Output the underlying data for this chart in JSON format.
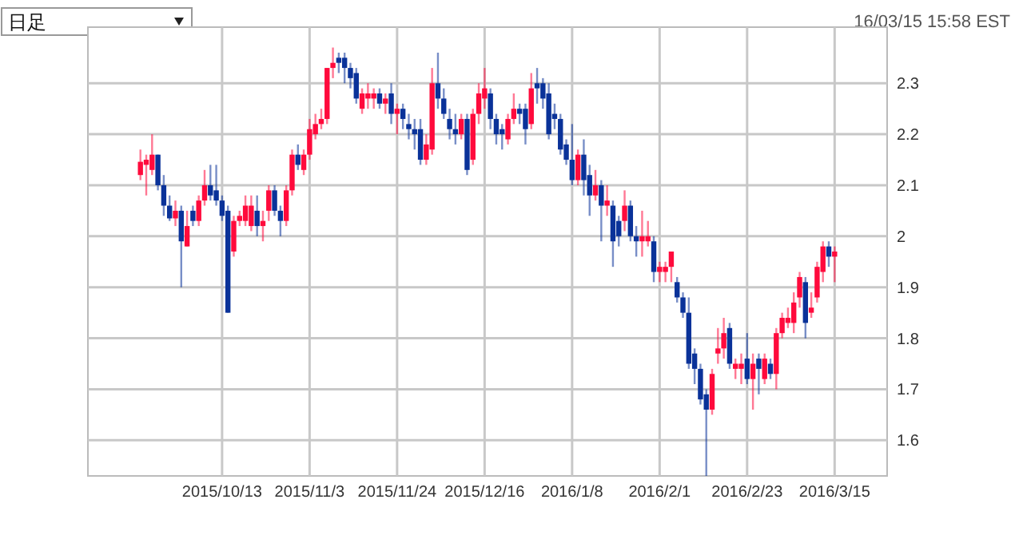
{
  "chart_data": {
    "type": "candlestick",
    "categories": [
      null,
      null,
      null,
      null,
      null,
      null,
      null,
      null,
      null,
      null,
      null,
      null,
      null,
      null,
      "2015/10/13",
      null,
      null,
      null,
      null,
      null,
      null,
      null,
      null,
      null,
      null,
      null,
      null,
      null,
      null,
      "2015/11/3",
      null,
      null,
      null,
      null,
      null,
      null,
      null,
      null,
      null,
      null,
      null,
      null,
      null,
      null,
      "2015/11/24",
      null,
      null,
      null,
      null,
      null,
      null,
      null,
      null,
      null,
      null,
      null,
      null,
      null,
      null,
      "2015/12/16",
      null,
      null,
      null,
      null,
      null,
      null,
      null,
      null,
      null,
      null,
      null,
      null,
      null,
      null,
      "2016/1/8",
      null,
      null,
      null,
      null,
      null,
      null,
      null,
      null,
      null,
      null,
      null,
      null,
      null,
      null,
      "2016/2/1",
      null,
      null,
      null,
      null,
      null,
      null,
      null,
      null,
      null,
      null,
      null,
      null,
      null,
      null,
      "2016/2/23",
      null,
      null,
      null,
      null,
      null,
      null,
      null,
      null,
      null,
      null,
      null,
      null,
      null,
      null,
      "2016/3/15"
    ],
    "ohlc": [
      [
        2.12,
        2.17,
        2.11,
        2.146
      ],
      [
        2.14,
        2.16,
        2.08,
        2.15
      ],
      [
        2.13,
        2.2,
        2.12,
        2.16
      ],
      [
        2.16,
        2.16,
        2.09,
        2.1
      ],
      [
        2.1,
        2.12,
        2.04,
        2.06
      ],
      [
        2.06,
        2.08,
        2.03,
        2.035
      ],
      [
        2.035,
        2.07,
        2.02,
        2.05
      ],
      [
        2.05,
        2.06,
        1.9,
        1.99
      ],
      [
        1.98,
        2.05,
        1.98,
        2.02
      ],
      [
        2.05,
        2.06,
        2.02,
        2.03
      ],
      [
        2.03,
        2.08,
        2.02,
        2.07
      ],
      [
        2.07,
        2.13,
        2.06,
        2.1
      ],
      [
        2.1,
        2.14,
        2.07,
        2.08
      ],
      [
        2.09,
        2.14,
        2.06,
        2.07
      ],
      [
        2.07,
        2.08,
        2.03,
        2.04
      ],
      [
        2.05,
        2.06,
        1.85,
        1.85
      ],
      [
        1.97,
        2.04,
        1.96,
        2.03
      ],
      [
        2.03,
        2.05,
        2.02,
        2.04
      ],
      [
        2.03,
        2.08,
        2.02,
        2.06
      ],
      [
        2.02,
        2.08,
        2.01,
        2.06
      ],
      [
        2.05,
        2.08,
        2,
        2.02
      ],
      [
        2.02,
        2.05,
        1.99,
        2.03
      ],
      [
        2.05,
        2.1,
        2.03,
        2.09
      ],
      [
        2.09,
        2.1,
        2.04,
        2.05
      ],
      [
        2.05,
        2.06,
        2,
        2.03
      ],
      [
        2.03,
        2.1,
        2.02,
        2.09
      ],
      [
        2.09,
        2.17,
        2.08,
        2.16
      ],
      [
        2.16,
        2.18,
        2.13,
        2.14
      ],
      [
        2.13,
        2.17,
        2.12,
        2.16
      ],
      [
        2.16,
        2.23,
        2.15,
        2.21
      ],
      [
        2.2,
        2.24,
        2.19,
        2.22
      ],
      [
        2.22,
        2.25,
        2.21,
        2.23
      ],
      [
        2.23,
        2.33,
        2.22,
        2.33
      ],
      [
        2.33,
        2.37,
        2.31,
        2.34
      ],
      [
        2.35,
        2.36,
        2.32,
        2.34
      ],
      [
        2.35,
        2.36,
        2.3,
        2.33
      ],
      [
        2.33,
        2.34,
        2.29,
        2.31
      ],
      [
        2.32,
        2.33,
        2.26,
        2.27
      ],
      [
        2.25,
        2.29,
        2.24,
        2.28
      ],
      [
        2.27,
        2.3,
        2.25,
        2.28
      ],
      [
        2.27,
        2.29,
        2.25,
        2.28
      ],
      [
        2.28,
        2.29,
        2.25,
        2.26
      ],
      [
        2.26,
        2.28,
        2.24,
        2.27
      ],
      [
        2.28,
        2.3,
        2.22,
        2.24
      ],
      [
        2.24,
        2.26,
        2.2,
        2.25
      ],
      [
        2.25,
        2.26,
        2.21,
        2.23
      ],
      [
        2.22,
        2.24,
        2.19,
        2.21
      ],
      [
        2.21,
        2.23,
        2.17,
        2.2
      ],
      [
        2.21,
        2.23,
        2.14,
        2.15
      ],
      [
        2.15,
        2.2,
        2.14,
        2.18
      ],
      [
        2.17,
        2.33,
        2.16,
        2.3
      ],
      [
        2.3,
        2.36,
        2.25,
        2.27
      ],
      [
        2.27,
        2.29,
        2.23,
        2.24
      ],
      [
        2.23,
        2.25,
        2.19,
        2.21
      ],
      [
        2.21,
        2.24,
        2.18,
        2.2
      ],
      [
        2.2,
        2.24,
        2.19,
        2.23
      ],
      [
        2.23,
        2.24,
        2.12,
        2.13
      ],
      [
        2.15,
        2.25,
        2.14,
        2.24
      ],
      [
        2.24,
        2.3,
        2.22,
        2.28
      ],
      [
        2.27,
        2.33,
        2.25,
        2.29
      ],
      [
        2.28,
        2.29,
        2.21,
        2.23
      ],
      [
        2.23,
        2.24,
        2.18,
        2.2
      ],
      [
        2.21,
        2.22,
        2.17,
        2.2
      ],
      [
        2.19,
        2.24,
        2.18,
        2.23
      ],
      [
        2.23,
        2.28,
        2.22,
        2.25
      ],
      [
        2.25,
        2.26,
        2.22,
        2.24
      ],
      [
        2.25,
        2.26,
        2.18,
        2.21
      ],
      [
        2.22,
        2.32,
        2.21,
        2.29
      ],
      [
        2.3,
        2.33,
        2.26,
        2.29
      ],
      [
        2.3,
        2.31,
        2.25,
        2.27
      ],
      [
        2.28,
        2.3,
        2.19,
        2.2
      ],
      [
        2.24,
        2.26,
        2.21,
        2.23
      ],
      [
        2.23,
        2.24,
        2.16,
        2.17
      ],
      [
        2.18,
        2.19,
        2.14,
        2.15
      ],
      [
        2.15,
        2.22,
        2.1,
        2.11
      ],
      [
        2.11,
        2.17,
        2.1,
        2.16
      ],
      [
        2.16,
        2.19,
        2.08,
        2.11
      ],
      [
        2.12,
        2.14,
        2.04,
        2.08
      ],
      [
        2.08,
        2.13,
        2.07,
        2.1
      ],
      [
        2.1,
        2.11,
        1.99,
        2.06
      ],
      [
        2.06,
        2.1,
        2.04,
        2.07
      ],
      [
        2.06,
        2.07,
        1.94,
        1.99
      ],
      [
        2.03,
        2.04,
        1.98,
        2
      ],
      [
        2.03,
        2.09,
        2.01,
        2.06
      ],
      [
        2.06,
        2.07,
        1.99,
        2
      ],
      [
        2,
        2.02,
        1.96,
        1.99
      ],
      [
        1.99,
        2.05,
        1.96,
        2
      ],
      [
        1.99,
        2.03,
        1.98,
        2
      ],
      [
        1.99,
        2,
        1.91,
        1.93
      ],
      [
        1.93,
        1.95,
        1.91,
        1.94
      ],
      [
        1.93,
        1.95,
        1.91,
        1.94
      ],
      [
        1.94,
        1.97,
        1.91,
        1.97
      ],
      [
        1.91,
        1.92,
        1.87,
        1.88
      ],
      [
        1.88,
        1.89,
        1.84,
        1.85
      ],
      [
        1.85,
        1.88,
        1.74,
        1.75
      ],
      [
        1.77,
        1.78,
        1.71,
        1.74
      ],
      [
        1.74,
        1.75,
        1.67,
        1.68
      ],
      [
        1.69,
        1.7,
        1.53,
        1.66
      ],
      [
        1.66,
        1.74,
        1.65,
        1.73
      ],
      [
        1.77,
        1.82,
        1.75,
        1.78
      ],
      [
        1.78,
        1.84,
        1.76,
        1.81
      ],
      [
        1.82,
        1.83,
        1.74,
        1.75
      ],
      [
        1.74,
        1.76,
        1.72,
        1.75
      ],
      [
        1.74,
        1.77,
        1.71,
        1.75
      ],
      [
        1.76,
        1.81,
        1.71,
        1.72
      ],
      [
        1.72,
        1.77,
        1.66,
        1.75
      ],
      [
        1.76,
        1.77,
        1.69,
        1.74
      ],
      [
        1.72,
        1.77,
        1.71,
        1.76
      ],
      [
        1.75,
        1.76,
        1.72,
        1.73
      ],
      [
        1.73,
        1.82,
        1.7,
        1.81
      ],
      [
        1.81,
        1.85,
        1.8,
        1.84
      ],
      [
        1.83,
        1.86,
        1.82,
        1.84
      ],
      [
        1.83,
        1.89,
        1.81,
        1.87
      ],
      [
        1.88,
        1.93,
        1.86,
        1.92
      ],
      [
        1.91,
        1.92,
        1.8,
        1.83
      ],
      [
        1.85,
        1.89,
        1.84,
        1.86
      ],
      [
        1.88,
        1.95,
        1.87,
        1.94
      ],
      [
        1.93,
        1.99,
        1.91,
        1.98
      ],
      [
        1.98,
        1.99,
        1.94,
        1.96
      ],
      [
        1.96,
        1.98,
        1.91,
        1.97
      ]
    ],
    "colors": [
      "#ff0a3c",
      "#ff0a3c",
      "#ff0a3c",
      "#0a3299",
      "#0a3299",
      "#0a3299",
      "#ff0a3c",
      "#0a3299",
      "#ff0a3c",
      "#0a3299",
      "#ff0a3c",
      "#ff0a3c",
      "#0a3299",
      "#0a3299",
      "#0a3299",
      "#0a3299",
      "#ff0a3c",
      "#ff0a3c",
      "#ff0a3c",
      "#ff0a3c",
      "#0a3299",
      "#ff0a3c",
      "#ff0a3c",
      "#0a3299",
      "#0a3299",
      "#ff0a3c",
      "#ff0a3c",
      "#0a3299",
      "#ff0a3c",
      "#ff0a3c",
      "#ff0a3c",
      "#ff0a3c",
      "#ff0a3c",
      "#ff0a3c",
      "#0a3299",
      "#0a3299",
      "#0a3299",
      "#0a3299",
      "#ff0a3c",
      "#ff0a3c",
      "#ff0a3c",
      "#0a3299",
      "#ff0a3c",
      "#0a3299",
      "#ff0a3c",
      "#0a3299",
      "#0a3299",
      "#0a3299",
      "#0a3299",
      "#ff0a3c",
      "#ff0a3c",
      "#0a3299",
      "#0a3299",
      "#0a3299",
      "#0a3299",
      "#ff0a3c",
      "#0a3299",
      "#ff0a3c",
      "#ff0a3c",
      "#ff0a3c",
      "#0a3299",
      "#0a3299",
      "#0a3299",
      "#ff0a3c",
      "#ff0a3c",
      "#0a3299",
      "#0a3299",
      "#ff0a3c",
      "#0a3299",
      "#0a3299",
      "#0a3299",
      "#0a3299",
      "#0a3299",
      "#0a3299",
      "#0a3299",
      "#ff0a3c",
      "#0a3299",
      "#0a3299",
      "#ff0a3c",
      "#0a3299",
      "#ff0a3c",
      "#0a3299",
      "#0a3299",
      "#ff0a3c",
      "#0a3299",
      "#0a3299",
      "#ff0a3c",
      "#ff0a3c",
      "#0a3299",
      "#ff0a3c",
      "#ff0a3c",
      "#ff0a3c",
      "#0a3299",
      "#0a3299",
      "#0a3299",
      "#0a3299",
      "#0a3299",
      "#0a3299",
      "#ff0a3c",
      "#ff0a3c",
      "#ff0a3c",
      "#0a3299",
      "#ff0a3c",
      "#ff0a3c",
      "#0a3299",
      "#ff0a3c",
      "#0a3299",
      "#ff0a3c",
      "#0a3299",
      "#ff0a3c",
      "#ff0a3c",
      "#ff0a3c",
      "#ff0a3c",
      "#ff0a3c",
      "#0a3299",
      "#ff0a3c",
      "#ff0a3c",
      "#ff0a3c",
      "#0a3299",
      "#ff0a3c"
    ],
    "ylim": [
      1.53,
      2.41
    ],
    "yticks": [
      1.6,
      1.7,
      1.8,
      1.9,
      2.0,
      2.1,
      2.2,
      2.3
    ],
    "grid": true,
    "annotations": [
      "日足",
      "16/03/15 15:58 EST"
    ]
  }
}
